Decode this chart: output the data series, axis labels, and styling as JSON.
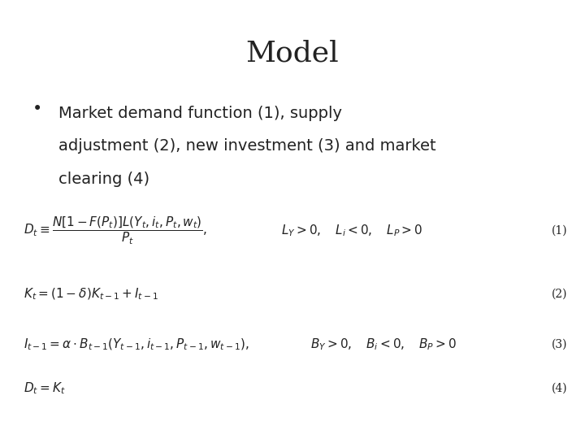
{
  "title": "Model",
  "title_fontsize": 26,
  "bg_color": "#ffffff",
  "bullet_text_line1": "Market demand function (1), supply",
  "bullet_text_line2": "adjustment (2), new investment (3) and market",
  "bullet_text_line3": "clearing (4)",
  "bullet_fontsize": 14,
  "eq1_lhs": "$D_t \\equiv \\dfrac{N[1-F(P_t)]L(Y_t,i_t,P_t,w_t)}{P_t},$",
  "eq1_rhs": "$L_Y > 0, \\quad L_i < 0, \\quad L_P > 0$",
  "eq1_num": "(1)",
  "eq2": "$K_t = (1-\\delta)K_{t-1} + I_{t-1}$",
  "eq2_num": "(2)",
  "eq3_lhs": "$I_{t-1} = \\alpha \\cdot B_{t-1}(Y_{t-1}, i_{t-1}, P_{t-1}, w_{t-1}),$",
  "eq3_rhs": "$B_Y > 0, \\quad B_i < 0, \\quad B_P > 0$",
  "eq3_num": "(3)",
  "eq4": "$D_t = K_t$",
  "eq4_num": "(4)",
  "eq_fontsize": 11,
  "eq_num_fontsize": 10,
  "text_color": "#222222"
}
